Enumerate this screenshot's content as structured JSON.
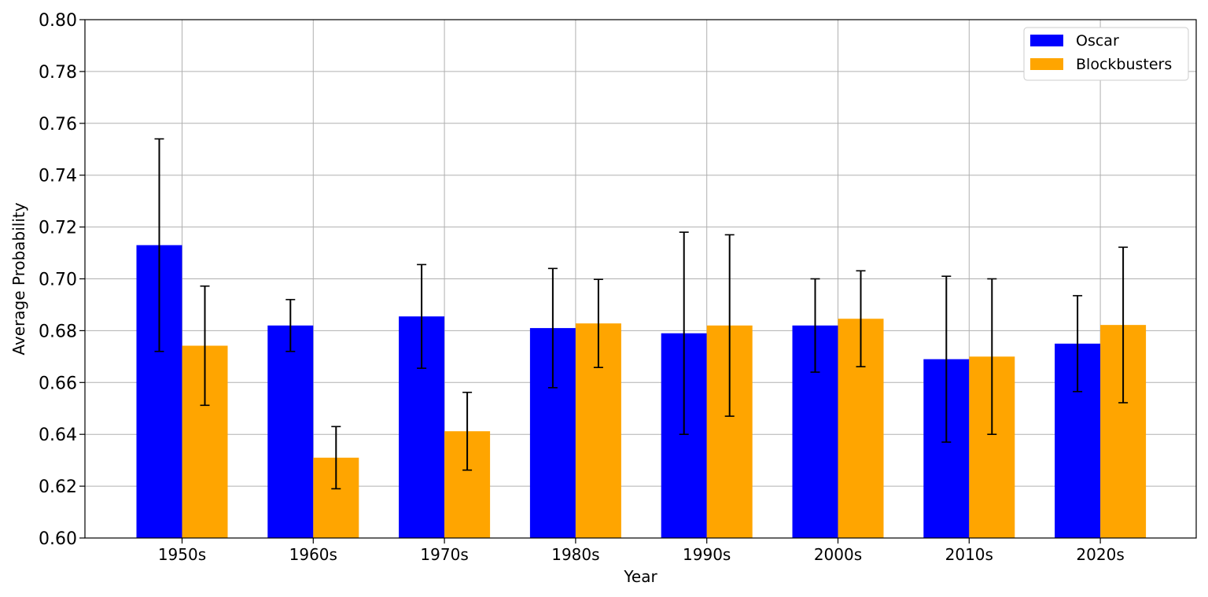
{
  "chart_data": {
    "type": "bar",
    "title": "",
    "xlabel": "Year",
    "ylabel": "Average Probability",
    "categories": [
      "1950s",
      "1960s",
      "1970s",
      "1980s",
      "1990s",
      "2000s",
      "2010s",
      "2020s"
    ],
    "ylim": [
      0.6,
      0.8
    ],
    "yticks": [
      "0.60",
      "0.62",
      "0.64",
      "0.66",
      "0.68",
      "0.70",
      "0.72",
      "0.74",
      "0.76",
      "0.78",
      "0.80"
    ],
    "grid": true,
    "legend_position": "top-right",
    "series": [
      {
        "name": "Oscar",
        "color": "#0000ff",
        "values": [
          0.713,
          0.682,
          0.6855,
          0.681,
          0.679,
          0.682,
          0.669,
          0.675
        ],
        "error": [
          0.041,
          0.01,
          0.02,
          0.023,
          0.039,
          0.018,
          0.032,
          0.0185
        ]
      },
      {
        "name": "Blockbusters",
        "color": "#ffa500",
        "values": [
          0.6742,
          0.631,
          0.6412,
          0.6828,
          0.682,
          0.6846,
          0.67,
          0.6822
        ],
        "error": [
          0.023,
          0.012,
          0.015,
          0.017,
          0.035,
          0.0185,
          0.03,
          0.03
        ]
      }
    ]
  }
}
